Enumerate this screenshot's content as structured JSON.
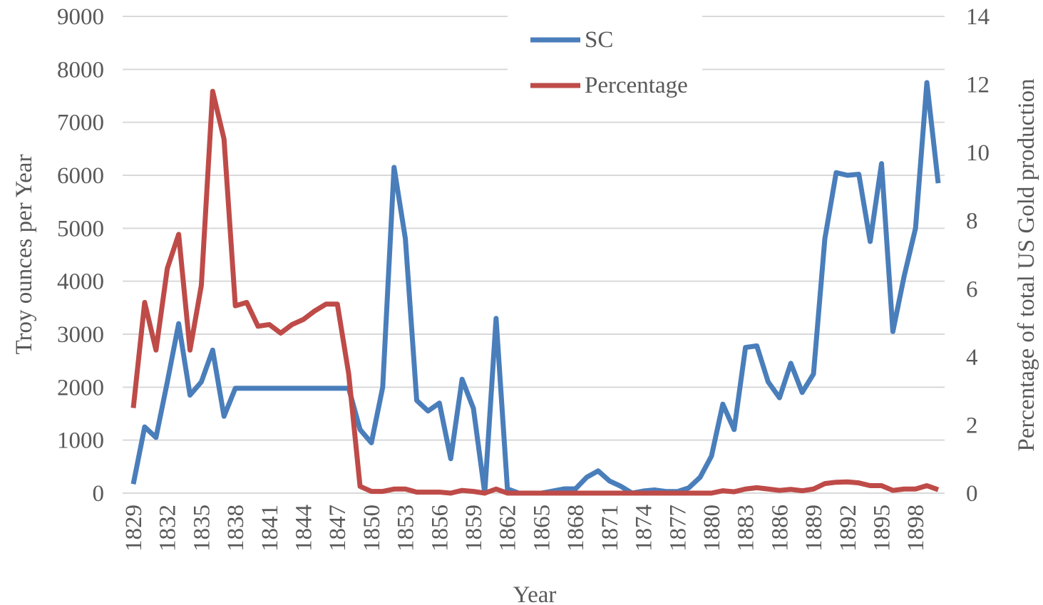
{
  "chart_data": {
    "type": "line",
    "x_label": "Year",
    "y_label": "Troy ounces per Year",
    "y2_label": "Percentage of total US Gold production",
    "x": [
      1829,
      1830,
      1831,
      1832,
      1833,
      1834,
      1835,
      1836,
      1837,
      1838,
      1839,
      1840,
      1841,
      1842,
      1843,
      1844,
      1845,
      1846,
      1847,
      1848,
      1849,
      1850,
      1851,
      1852,
      1853,
      1854,
      1855,
      1856,
      1857,
      1858,
      1859,
      1860,
      1861,
      1862,
      1863,
      1864,
      1865,
      1866,
      1867,
      1868,
      1869,
      1870,
      1871,
      1872,
      1873,
      1874,
      1875,
      1876,
      1877,
      1878,
      1879,
      1880,
      1881,
      1882,
      1883,
      1884,
      1885,
      1886,
      1887,
      1888,
      1889,
      1890,
      1891,
      1892,
      1893,
      1894,
      1895,
      1896,
      1897,
      1898,
      1899,
      1900
    ],
    "xlim": [
      1829,
      1900
    ],
    "xticks": [
      1829,
      1832,
      1835,
      1838,
      1841,
      1844,
      1847,
      1850,
      1853,
      1856,
      1859,
      1862,
      1865,
      1868,
      1871,
      1874,
      1877,
      1880,
      1883,
      1886,
      1889,
      1892,
      1895,
      1898
    ],
    "ylim": [
      0,
      9000
    ],
    "yticks": [
      0,
      1000,
      2000,
      3000,
      4000,
      5000,
      6000,
      7000,
      8000,
      9000
    ],
    "y2lim": [
      0,
      14
    ],
    "y2ticks": [
      0,
      2,
      4,
      6,
      8,
      10,
      12,
      14
    ],
    "grid": true,
    "legend": "top",
    "series": [
      {
        "name": "SC",
        "color": "#4a7ebb",
        "values": [
          170,
          1250,
          1050,
          2100,
          3200,
          1850,
          2100,
          2700,
          1450,
          1980,
          1980,
          1980,
          1980,
          1980,
          1980,
          1980,
          1980,
          1980,
          1980,
          1980,
          1200,
          950,
          2000,
          6150,
          4800,
          1750,
          1550,
          1700,
          650,
          2150,
          1600,
          0,
          3300,
          80,
          0,
          0,
          0,
          40,
          80,
          80,
          300,
          420,
          230,
          130,
          0,
          40,
          60,
          30,
          30,
          100,
          300,
          700,
          1680,
          1200,
          2750,
          2780,
          2100,
          1800,
          2450,
          1900,
          2250,
          4800,
          6050,
          6000,
          6020,
          4750,
          6220,
          3050,
          4100,
          5000,
          7750,
          5850
        ]
      },
      {
        "name": "Percentage",
        "color": "#be4b48",
        "axis": "y2",
        "values": [
          2.5,
          5.6,
          4.2,
          6.6,
          7.6,
          4.2,
          6.1,
          11.8,
          10.4,
          5.5,
          5.6,
          4.9,
          4.95,
          4.7,
          4.95,
          5.1,
          5.35,
          5.55,
          5.55,
          3.5,
          0.2,
          0.05,
          0.05,
          0.12,
          0.12,
          0.03,
          0.03,
          0.03,
          0,
          0.08,
          0.05,
          0,
          0.12,
          0,
          0,
          0,
          0,
          0,
          0,
          0,
          0,
          0,
          0,
          0,
          0,
          0,
          0,
          0,
          0,
          0,
          0,
          0,
          0.07,
          0.04,
          0.12,
          0.16,
          0.12,
          0.08,
          0.11,
          0.07,
          0.12,
          0.28,
          0.32,
          0.33,
          0.3,
          0.22,
          0.22,
          0.08,
          0.12,
          0.12,
          0.22,
          0.1
        ]
      }
    ]
  }
}
